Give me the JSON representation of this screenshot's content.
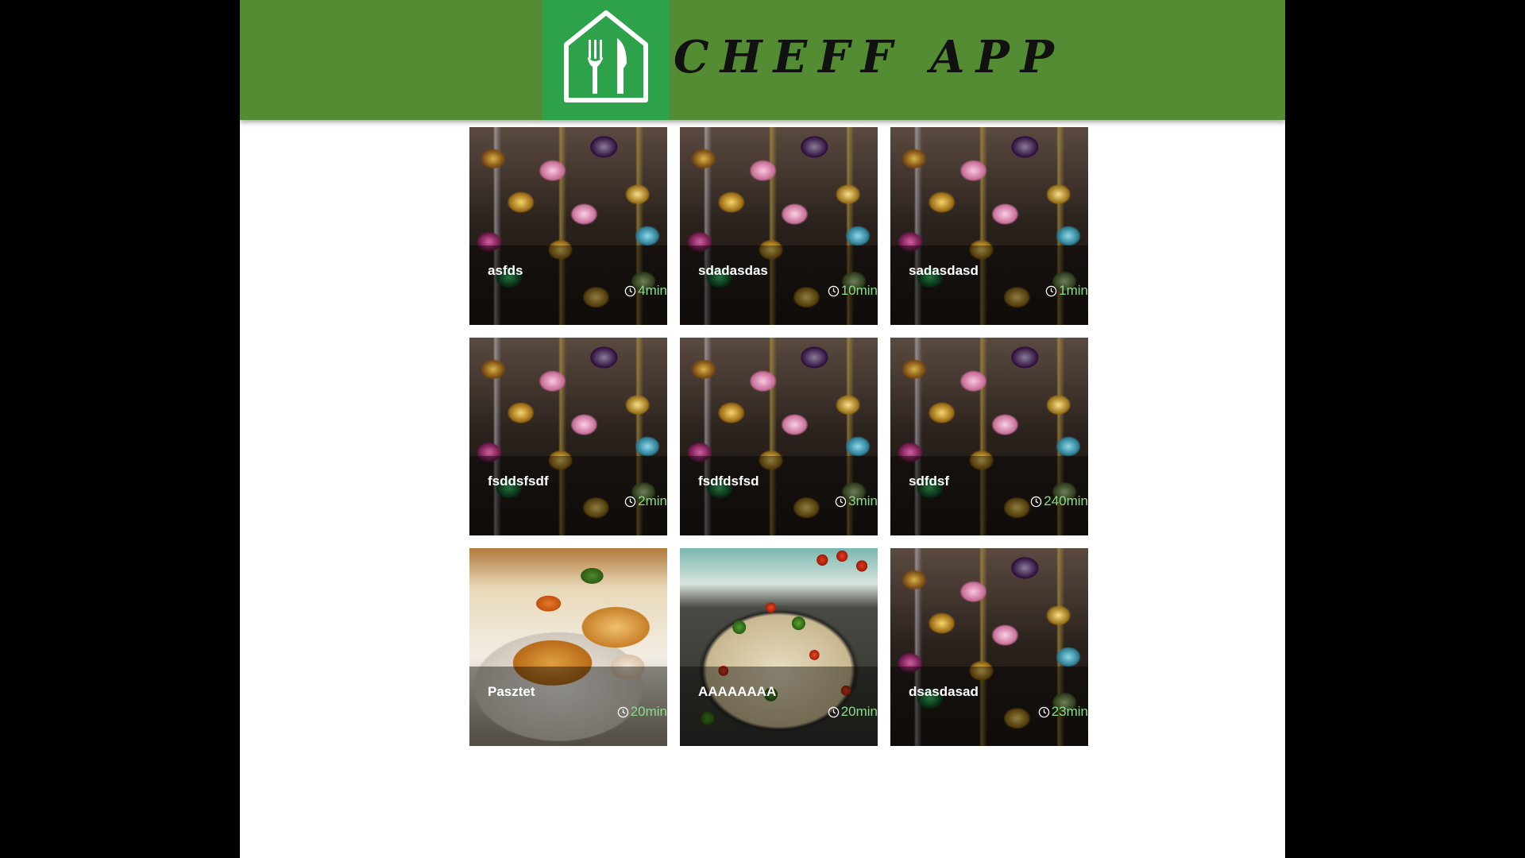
{
  "header": {
    "title": "CHEFF APP",
    "logo_icon": "fork-knife-house-icon",
    "background_color": "#548c34",
    "logo_background_color": "#2ea24a"
  },
  "recipes": [
    {
      "name": "asfds",
      "time": "4min",
      "image": "ornaments"
    },
    {
      "name": "sdadasdas",
      "time": "10min",
      "image": "ornaments"
    },
    {
      "name": "sadasdasd",
      "time": "1min",
      "image": "ornaments"
    },
    {
      "name": "fsddsfsdf",
      "time": "2min",
      "image": "ornaments"
    },
    {
      "name": "fsdfdsfsd",
      "time": "3min",
      "image": "ornaments"
    },
    {
      "name": "sdfdsf",
      "time": "240min",
      "image": "ornaments"
    },
    {
      "name": "Pasztet",
      "time": "20min",
      "image": "schnitzel"
    },
    {
      "name": "AAAAAAAA",
      "time": "20min",
      "image": "pasta"
    },
    {
      "name": "dsasdasad",
      "time": "23min",
      "image": "ornaments"
    }
  ],
  "time_color": "#8bdc8a"
}
